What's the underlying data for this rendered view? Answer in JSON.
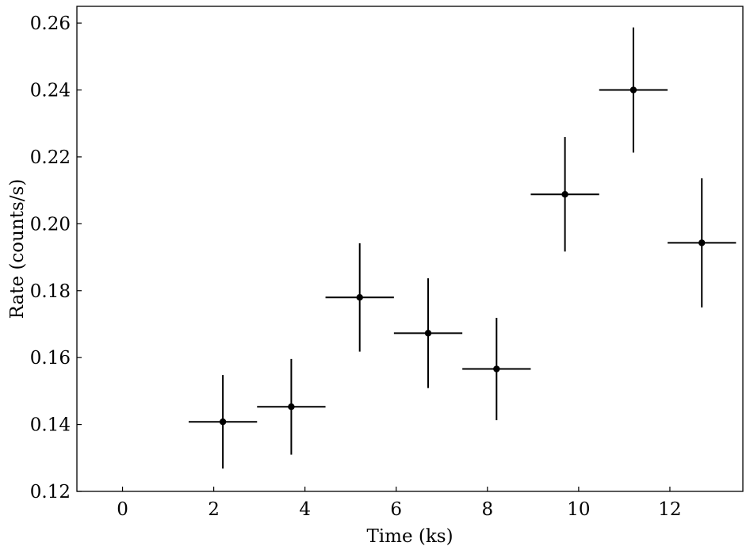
{
  "chart_data": {
    "type": "scatter",
    "title": "",
    "xlabel": "Time (ks)",
    "ylabel": "Rate (counts/s)",
    "xlim": [
      -1.0,
      13.6
    ],
    "ylim": [
      0.12,
      0.265
    ],
    "xticks": [
      0,
      2,
      4,
      6,
      8,
      10,
      12
    ],
    "xtick_labels": [
      "0",
      "2",
      "4",
      "6",
      "8",
      "10",
      "12"
    ],
    "yticks": [
      0.12,
      0.14,
      0.16,
      0.18,
      0.2,
      0.22,
      0.24,
      0.26
    ],
    "ytick_labels": [
      "0.12",
      "0.14",
      "0.16",
      "0.18",
      "0.20",
      "0.22",
      "0.24",
      "0.26"
    ],
    "grid": false,
    "legend": "none",
    "color": "#000000",
    "points": [
      {
        "x": 2.2,
        "y": 0.1408,
        "xerr": 0.75,
        "yerr": 0.014
      },
      {
        "x": 3.7,
        "y": 0.1453,
        "xerr": 0.75,
        "yerr": 0.0143
      },
      {
        "x": 5.2,
        "y": 0.178,
        "xerr": 0.75,
        "yerr": 0.0162
      },
      {
        "x": 6.7,
        "y": 0.1673,
        "xerr": 0.75,
        "yerr": 0.0164
      },
      {
        "x": 8.2,
        "y": 0.1566,
        "xerr": 0.75,
        "yerr": 0.0153
      },
      {
        "x": 9.7,
        "y": 0.2088,
        "xerr": 0.75,
        "yerr": 0.0171
      },
      {
        "x": 11.2,
        "y": 0.24,
        "xerr": 0.75,
        "yerr": 0.0187
      },
      {
        "x": 12.7,
        "y": 0.1943,
        "xerr": 0.75,
        "yerr": 0.0193
      }
    ]
  }
}
